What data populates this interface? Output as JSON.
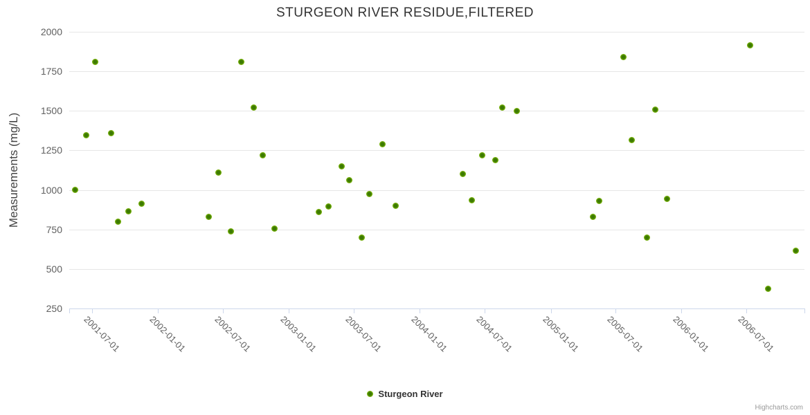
{
  "title": "STURGEON RIVER RESIDUE,FILTERED",
  "credits": "Highcharts.com",
  "legend": {
    "series_label": "Sturgeon River"
  },
  "colors": {
    "marker_outer": "#77b208",
    "marker_inner": "#3d7a02",
    "grid": "#e6e6e6",
    "axis_line": "#ccd6eb",
    "title_text": "#333333",
    "label_text": "#606060",
    "credits_text": "#999999"
  },
  "chart_data": {
    "type": "scatter",
    "title": "STURGEON RIVER RESIDUE,FILTERED",
    "xlabel": "",
    "ylabel": "Measurements (mg/L)",
    "ylim": [
      250,
      2000
    ],
    "y_ticks": [
      250,
      500,
      750,
      1000,
      1250,
      1500,
      1750,
      2000
    ],
    "x_ticks": [
      "2001-07-01",
      "2002-01-01",
      "2002-07-01",
      "2003-01-01",
      "2003-07-01",
      "2004-01-01",
      "2004-07-01",
      "2005-01-01",
      "2005-07-01",
      "2006-01-01",
      "2006-07-01"
    ],
    "x_range": [
      "2001-04-28",
      "2006-12-10"
    ],
    "grid": true,
    "legend_position": "bottom",
    "series": [
      {
        "name": "Sturgeon River",
        "points": [
          {
            "x": "2001-05-15",
            "y": 1000
          },
          {
            "x": "2001-06-14",
            "y": 1345
          },
          {
            "x": "2001-07-10",
            "y": 1810
          },
          {
            "x": "2001-08-23",
            "y": 1360
          },
          {
            "x": "2001-09-12",
            "y": 800
          },
          {
            "x": "2001-10-11",
            "y": 865
          },
          {
            "x": "2001-11-15",
            "y": 915
          },
          {
            "x": "2002-05-22",
            "y": 830
          },
          {
            "x": "2002-06-18",
            "y": 1110
          },
          {
            "x": "2002-07-24",
            "y": 740
          },
          {
            "x": "2002-08-22",
            "y": 1810
          },
          {
            "x": "2002-09-24",
            "y": 1520
          },
          {
            "x": "2002-10-21",
            "y": 1220
          },
          {
            "x": "2002-11-22",
            "y": 755
          },
          {
            "x": "2003-03-25",
            "y": 860
          },
          {
            "x": "2003-04-22",
            "y": 895
          },
          {
            "x": "2003-05-28",
            "y": 1150
          },
          {
            "x": "2003-06-18",
            "y": 1060
          },
          {
            "x": "2003-07-23",
            "y": 700
          },
          {
            "x": "2003-08-14",
            "y": 975
          },
          {
            "x": "2003-09-19",
            "y": 1290
          },
          {
            "x": "2003-10-26",
            "y": 900
          },
          {
            "x": "2004-05-01",
            "y": 1100
          },
          {
            "x": "2004-05-26",
            "y": 935
          },
          {
            "x": "2004-06-24",
            "y": 1220
          },
          {
            "x": "2004-07-30",
            "y": 1190
          },
          {
            "x": "2004-08-19",
            "y": 1520
          },
          {
            "x": "2004-09-29",
            "y": 1500
          },
          {
            "x": "2005-04-29",
            "y": 830
          },
          {
            "x": "2005-05-17",
            "y": 930
          },
          {
            "x": "2005-07-22",
            "y": 1840
          },
          {
            "x": "2005-08-15",
            "y": 1315
          },
          {
            "x": "2005-09-26",
            "y": 700
          },
          {
            "x": "2005-10-19",
            "y": 1510
          },
          {
            "x": "2005-11-22",
            "y": 945
          },
          {
            "x": "2006-07-12",
            "y": 1915
          },
          {
            "x": "2006-08-30",
            "y": 375
          },
          {
            "x": "2006-11-15",
            "y": 615
          }
        ]
      }
    ]
  }
}
